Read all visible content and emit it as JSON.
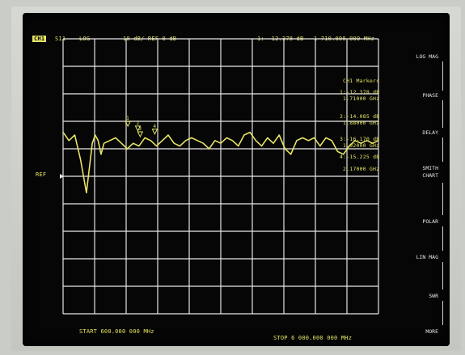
{
  "status_bar": {
    "channel": "CH1",
    "parameter": "S11",
    "format": "LOG",
    "scale": "10 dB/ REF 0 dB",
    "marker_readout": "1: -12.378 dB",
    "marker_frequency": "1 710.000 000 MHz"
  },
  "reference_label": "REF",
  "marker_list": {
    "title": "CH1 Markers",
    "entries": [
      {
        "line1": "1:-12.378 dB",
        "line2": "1.71000 GHz"
      },
      {
        "line1": "2:-14.085 dB",
        "line2": "1.88000 GHz"
      },
      {
        "line1": "3:-16.170 dB",
        "line2": "1.92000 GHz"
      },
      {
        "line1": "4:-15.225 dB",
        "line2": "2.17000 GHz"
      }
    ]
  },
  "footer": {
    "start": "START 600.000 000 MHz",
    "stop": "STOP 6 000.000 000 MHz"
  },
  "softkeys": [
    {
      "label": "LOG MAG",
      "selected": true
    },
    {
      "label": "PHASE",
      "selected": false
    },
    {
      "label": "DELAY",
      "selected": false
    },
    {
      "label": "SMITH CHART",
      "selected": false
    },
    {
      "label": "POLAR",
      "selected": false
    },
    {
      "label": "LIN MAG",
      "selected": false
    },
    {
      "label": "SWR",
      "selected": false
    },
    {
      "label": "MORE",
      "selected": false
    }
  ],
  "colors": {
    "trace": "#e8e466",
    "grid": "#e6e6e6",
    "background": "#050605"
  },
  "chart_data": {
    "type": "line",
    "title": "",
    "xlabel": "",
    "ylabel": "",
    "xlim": [
      600,
      6000
    ],
    "x_unit": "MHz",
    "ylim": [
      -80,
      20
    ],
    "y_unit": "dB",
    "grid": true,
    "series": [
      {
        "x": [
          600,
          700,
          800,
          900,
          1000,
          1100,
          1150,
          1200,
          1250,
          1300,
          1400,
          1500,
          1600,
          1700,
          1800,
          1900,
          2000,
          2100,
          2200,
          2300,
          2400,
          2500,
          2600,
          2700,
          2800,
          2900,
          3000,
          3100,
          3200,
          3300,
          3400,
          3500,
          3600,
          3700,
          3800,
          3900,
          4000,
          4100,
          4200,
          4300,
          4400,
          4500,
          4600,
          4700,
          4800,
          4900,
          5000,
          5100,
          5200,
          5300,
          5400,
          5500,
          5600,
          5700,
          5800,
          5900,
          6000
        ],
        "y": [
          -14,
          -17,
          -15,
          -24,
          -36,
          -18,
          -15,
          -17,
          -22,
          -18,
          -17,
          -16,
          -18,
          -20,
          -18,
          -19,
          -16,
          -17,
          -19,
          -17,
          -15,
          -18,
          -19,
          -17,
          -16,
          -17,
          -18,
          -20,
          -17,
          -18,
          -16,
          -17,
          -19,
          -15,
          -14,
          -17,
          -19,
          -16,
          -18,
          -15,
          -20,
          -22,
          -17,
          -16,
          -17,
          -16,
          -19,
          -16,
          -17,
          -21,
          -22,
          -19,
          -17,
          -18,
          -17,
          -18,
          -17
        ]
      }
    ],
    "markers": [
      {
        "id": "1",
        "x": 1710,
        "y": -12.378
      },
      {
        "id": "2",
        "x": 1880,
        "y": -14.085
      },
      {
        "id": "3",
        "x": 1920,
        "y": -16.17
      },
      {
        "id": "4",
        "x": 2170,
        "y": -15.225
      }
    ]
  }
}
